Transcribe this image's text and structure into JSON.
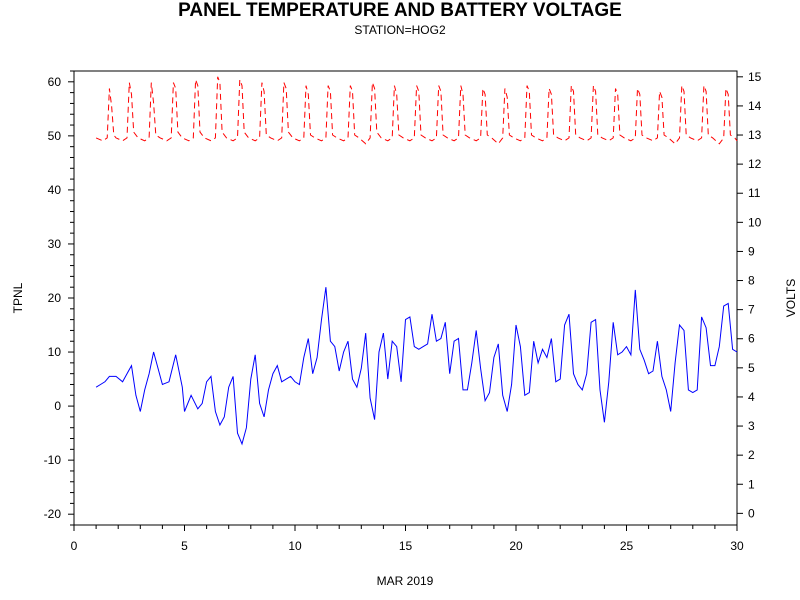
{
  "chart_data": {
    "type": "line",
    "title": "PANEL TEMPERATURE AND BATTERY VOLTAGE",
    "subtitle": "STATION=HOG2",
    "xlabel": "MAR 2019",
    "ylabel_left": "TPNL",
    "ylabel_right": "VOLTS",
    "xlim": [
      0,
      30
    ],
    "ylim_left": [
      -22,
      62
    ],
    "ylim_right": [
      -0.4,
      15.2
    ],
    "x_ticks": [
      0,
      5,
      10,
      15,
      20,
      25,
      30
    ],
    "y_left_ticks": [
      -20,
      -10,
      0,
      10,
      20,
      30,
      40,
      50,
      60
    ],
    "y_right_ticks": [
      0,
      1,
      2,
      3,
      4,
      5,
      6,
      7,
      8,
      9,
      10,
      11,
      12,
      13,
      14,
      15
    ],
    "grid": false,
    "series": [
      {
        "name": "TPNL",
        "axis": "left",
        "color": "#0000ff",
        "style": "solid",
        "x": [
          1.0,
          1.2,
          1.4,
          1.6,
          1.9,
          2.2,
          2.4,
          2.6,
          2.8,
          3.0,
          3.2,
          3.4,
          3.6,
          3.8,
          4.0,
          4.3,
          4.6,
          4.9,
          5.0,
          5.3,
          5.6,
          5.8,
          6.0,
          6.2,
          6.4,
          6.6,
          6.8,
          7.0,
          7.2,
          7.4,
          7.6,
          7.8,
          8.0,
          8.2,
          8.4,
          8.6,
          8.8,
          9.0,
          9.2,
          9.4,
          9.6,
          9.8,
          10.0,
          10.2,
          10.4,
          10.6,
          10.8,
          11.0,
          11.2,
          11.4,
          11.6,
          11.8,
          12.0,
          12.2,
          12.4,
          12.6,
          12.8,
          13.0,
          13.2,
          13.4,
          13.6,
          13.8,
          14.0,
          14.2,
          14.4,
          14.6,
          14.8,
          15.0,
          15.2,
          15.4,
          15.6,
          15.8,
          16.0,
          16.2,
          16.4,
          16.6,
          16.8,
          17.0,
          17.2,
          17.4,
          17.6,
          17.8,
          18.0,
          18.2,
          18.4,
          18.6,
          18.8,
          19.0,
          19.2,
          19.4,
          19.6,
          19.8,
          20.0,
          20.2,
          20.4,
          20.6,
          20.8,
          21.0,
          21.2,
          21.4,
          21.6,
          21.8,
          22.0,
          22.2,
          22.4,
          22.6,
          22.8,
          23.0,
          23.2,
          23.4,
          23.6,
          23.8,
          24.0,
          24.2,
          24.4,
          24.6,
          24.8,
          25.0,
          25.2,
          25.4,
          25.6,
          25.8,
          26.0,
          26.2,
          26.4,
          26.6,
          26.8,
          27.0,
          27.2,
          27.4,
          27.6,
          27.8,
          28.0,
          28.2,
          28.4,
          28.6,
          28.8,
          29.0,
          29.2,
          29.4,
          29.6,
          29.8,
          30.0
        ],
        "y": [
          3.5,
          4.0,
          4.5,
          5.5,
          5.5,
          4.5,
          6.0,
          7.5,
          2.0,
          -1.0,
          3.0,
          6.0,
          10.0,
          7.0,
          4.0,
          4.5,
          9.5,
          3.5,
          -1.0,
          2.0,
          -0.5,
          0.5,
          4.5,
          5.5,
          -1.0,
          -3.5,
          -2.0,
          3.5,
          5.5,
          -5.0,
          -7.0,
          -4.0,
          5.0,
          9.5,
          0.5,
          -2.0,
          3.0,
          6.0,
          7.5,
          4.5,
          5.0,
          5.5,
          4.5,
          4.0,
          9.0,
          12.5,
          6.0,
          9.0,
          16.0,
          22.0,
          12.0,
          11.0,
          6.5,
          10.0,
          12.0,
          5.0,
          3.5,
          7.0,
          13.5,
          1.5,
          -2.5,
          10.0,
          13.5,
          5.0,
          12.0,
          11.0,
          4.5,
          16.0,
          16.5,
          11.0,
          10.5,
          11.0,
          11.5,
          17.0,
          12.0,
          12.5,
          15.5,
          6.0,
          12.0,
          12.5,
          3.0,
          3.0,
          8.0,
          14.0,
          7.0,
          1.0,
          2.5,
          9.0,
          11.5,
          2.0,
          -1.0,
          4.0,
          15.0,
          11.0,
          2.0,
          2.5,
          12.0,
          8.0,
          10.5,
          9.0,
          12.5,
          4.5,
          5.0,
          15.0,
          17.0,
          6.0,
          4.0,
          3.0,
          6.0,
          15.5,
          16.0,
          3.0,
          -3.0,
          4.5,
          15.5,
          9.5,
          10.0,
          11.0,
          9.5,
          21.5,
          10.5,
          8.5,
          6.0,
          6.5,
          12.0,
          5.5,
          3.0,
          -1.0,
          8.0,
          15.0,
          14.0,
          3.0,
          2.5,
          3.0,
          16.5,
          14.5,
          7.5,
          7.5,
          11.0,
          18.5,
          19.0,
          10.5,
          10.0
        ]
      },
      {
        "name": "VOLTS",
        "axis": "right",
        "color": "#ff0000",
        "style": "dashed",
        "x": [
          1.0,
          1.3,
          1.5,
          1.6,
          1.7,
          1.8,
          1.9,
          2.2,
          2.4,
          2.5,
          2.6,
          2.7,
          2.9,
          3.2,
          3.4,
          3.5,
          3.6,
          3.7,
          3.9,
          4.2,
          4.4,
          4.5,
          4.6,
          4.7,
          4.9,
          5.2,
          5.4,
          5.5,
          5.6,
          5.7,
          5.9,
          6.2,
          6.4,
          6.5,
          6.6,
          6.7,
          6.9,
          7.2,
          7.4,
          7.5,
          7.6,
          7.7,
          7.9,
          8.2,
          8.4,
          8.5,
          8.6,
          8.7,
          8.9,
          9.2,
          9.4,
          9.5,
          9.6,
          9.7,
          9.9,
          10.2,
          10.4,
          10.5,
          10.6,
          10.7,
          10.9,
          11.2,
          11.4,
          11.5,
          11.6,
          11.7,
          11.9,
          12.2,
          12.4,
          12.5,
          12.6,
          12.7,
          12.9,
          13.2,
          13.4,
          13.5,
          13.6,
          13.7,
          13.9,
          14.2,
          14.4,
          14.5,
          14.6,
          14.7,
          14.9,
          15.2,
          15.4,
          15.5,
          15.6,
          15.7,
          15.9,
          16.2,
          16.4,
          16.5,
          16.6,
          16.7,
          16.9,
          17.2,
          17.4,
          17.5,
          17.6,
          17.7,
          17.9,
          18.2,
          18.4,
          18.5,
          18.6,
          18.7,
          18.9,
          19.2,
          19.4,
          19.5,
          19.6,
          19.7,
          19.9,
          20.2,
          20.4,
          20.5,
          20.6,
          20.7,
          20.9,
          21.2,
          21.4,
          21.5,
          21.6,
          21.7,
          21.9,
          22.2,
          22.4,
          22.5,
          22.6,
          22.7,
          22.9,
          23.2,
          23.4,
          23.5,
          23.6,
          23.7,
          23.9,
          24.2,
          24.4,
          24.5,
          24.6,
          24.7,
          24.9,
          25.2,
          25.4,
          25.5,
          25.6,
          25.7,
          25.9,
          26.2,
          26.4,
          26.5,
          26.6,
          26.7,
          26.9,
          27.2,
          27.4,
          27.5,
          27.6,
          27.7,
          27.9,
          28.2,
          28.4,
          28.5,
          28.6,
          28.7,
          28.9,
          29.2,
          29.4,
          29.5,
          29.6,
          29.7,
          29.9,
          30.0
        ],
        "y": [
          12.9,
          12.8,
          12.9,
          14.6,
          14.0,
          13.0,
          12.9,
          12.8,
          12.9,
          14.8,
          14.4,
          13.1,
          12.9,
          12.8,
          12.9,
          14.8,
          14.1,
          13.0,
          12.9,
          12.8,
          12.9,
          14.8,
          14.6,
          13.1,
          12.9,
          12.8,
          12.9,
          14.9,
          14.7,
          13.1,
          12.9,
          12.8,
          12.9,
          15.0,
          14.8,
          13.1,
          12.9,
          12.8,
          12.9,
          14.9,
          14.7,
          13.1,
          12.9,
          12.8,
          12.9,
          14.8,
          14.5,
          13.0,
          12.9,
          12.8,
          12.9,
          14.8,
          14.6,
          13.1,
          12.9,
          12.8,
          12.9,
          14.7,
          14.4,
          13.0,
          12.9,
          12.8,
          12.9,
          14.7,
          14.5,
          13.0,
          12.9,
          12.8,
          12.9,
          14.7,
          14.5,
          13.0,
          12.9,
          12.7,
          12.9,
          14.8,
          14.6,
          13.1,
          12.9,
          12.8,
          12.9,
          14.7,
          14.4,
          13.0,
          12.9,
          12.8,
          12.9,
          14.7,
          14.5,
          13.0,
          12.9,
          12.8,
          12.9,
          14.7,
          14.5,
          13.0,
          12.9,
          12.8,
          12.9,
          14.7,
          14.4,
          13.0,
          12.9,
          12.8,
          12.9,
          14.6,
          14.4,
          13.0,
          12.9,
          12.7,
          12.9,
          14.6,
          14.3,
          13.0,
          12.9,
          12.8,
          12.9,
          14.7,
          14.5,
          13.0,
          12.9,
          12.8,
          12.9,
          14.6,
          14.4,
          13.0,
          12.9,
          12.8,
          12.9,
          14.7,
          14.5,
          13.0,
          12.9,
          12.8,
          12.9,
          14.7,
          14.5,
          13.0,
          12.9,
          12.8,
          12.9,
          14.6,
          14.4,
          13.0,
          12.9,
          12.8,
          12.9,
          14.6,
          14.4,
          13.0,
          12.9,
          12.8,
          12.9,
          14.5,
          14.3,
          13.0,
          12.9,
          12.7,
          12.9,
          14.7,
          14.5,
          13.0,
          12.9,
          12.8,
          12.9,
          14.7,
          14.5,
          13.0,
          12.9,
          12.7,
          12.9,
          14.6,
          14.4,
          13.0,
          12.9,
          12.8
        ]
      }
    ]
  }
}
